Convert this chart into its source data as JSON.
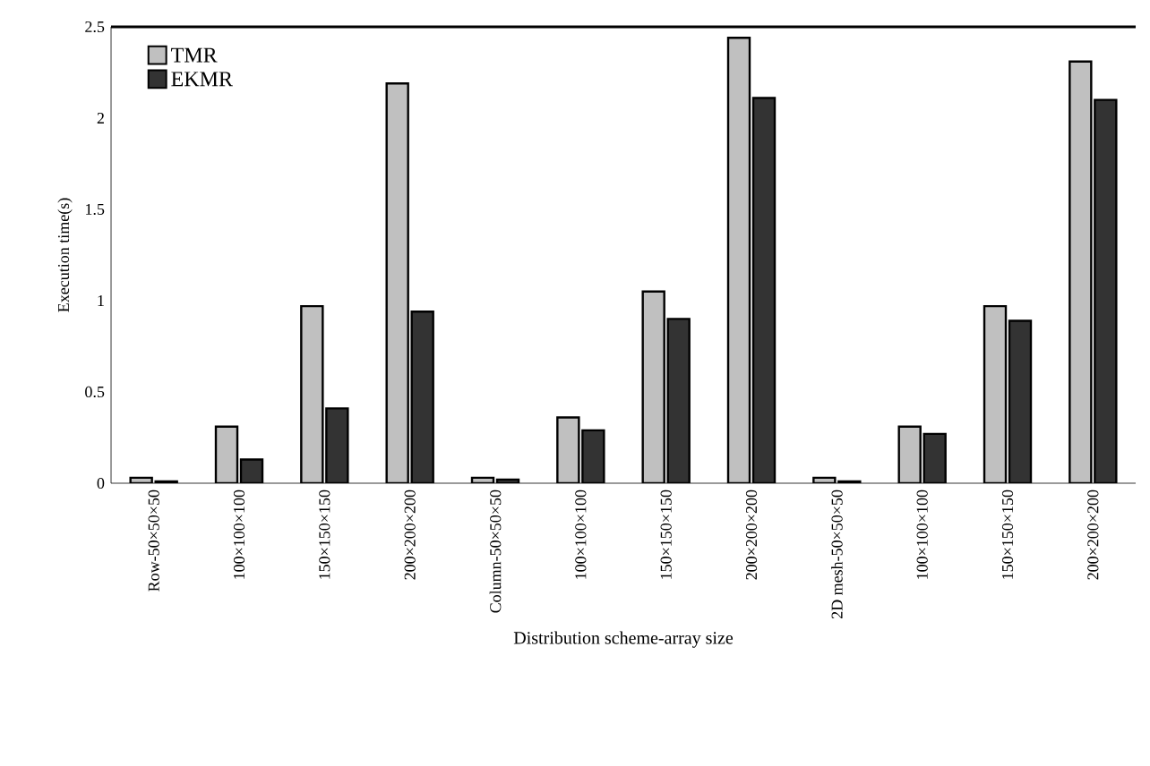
{
  "chart_data": {
    "type": "bar",
    "xlabel": "Distribution scheme-array size",
    "ylabel": "Execution time(s)",
    "categories": [
      "Row-50×50×50",
      "100×100×100",
      "150×150×150",
      "200×200×200",
      "Column-50×50×50",
      "100×100×100",
      "150×150×150",
      "200×200×200",
      "2D mesh-50×50×50",
      "100×100×100",
      "150×150×150",
      "200×200×200"
    ],
    "series": [
      {
        "name": "TMR",
        "color": "#c0c0c0",
        "values": [
          0.03,
          0.31,
          0.97,
          2.19,
          0.03,
          0.36,
          1.05,
          2.44,
          0.03,
          0.31,
          0.97,
          2.31
        ]
      },
      {
        "name": "EKMR",
        "color": "#333333",
        "values": [
          0.01,
          0.13,
          0.41,
          0.94,
          0.02,
          0.29,
          0.9,
          2.11,
          0.01,
          0.27,
          0.89,
          2.1
        ]
      }
    ],
    "ylim": [
      0,
      2.5
    ],
    "yticks": [
      0,
      0.5,
      1,
      1.5,
      2,
      2.5
    ],
    "grid": false,
    "legend": "top left"
  }
}
